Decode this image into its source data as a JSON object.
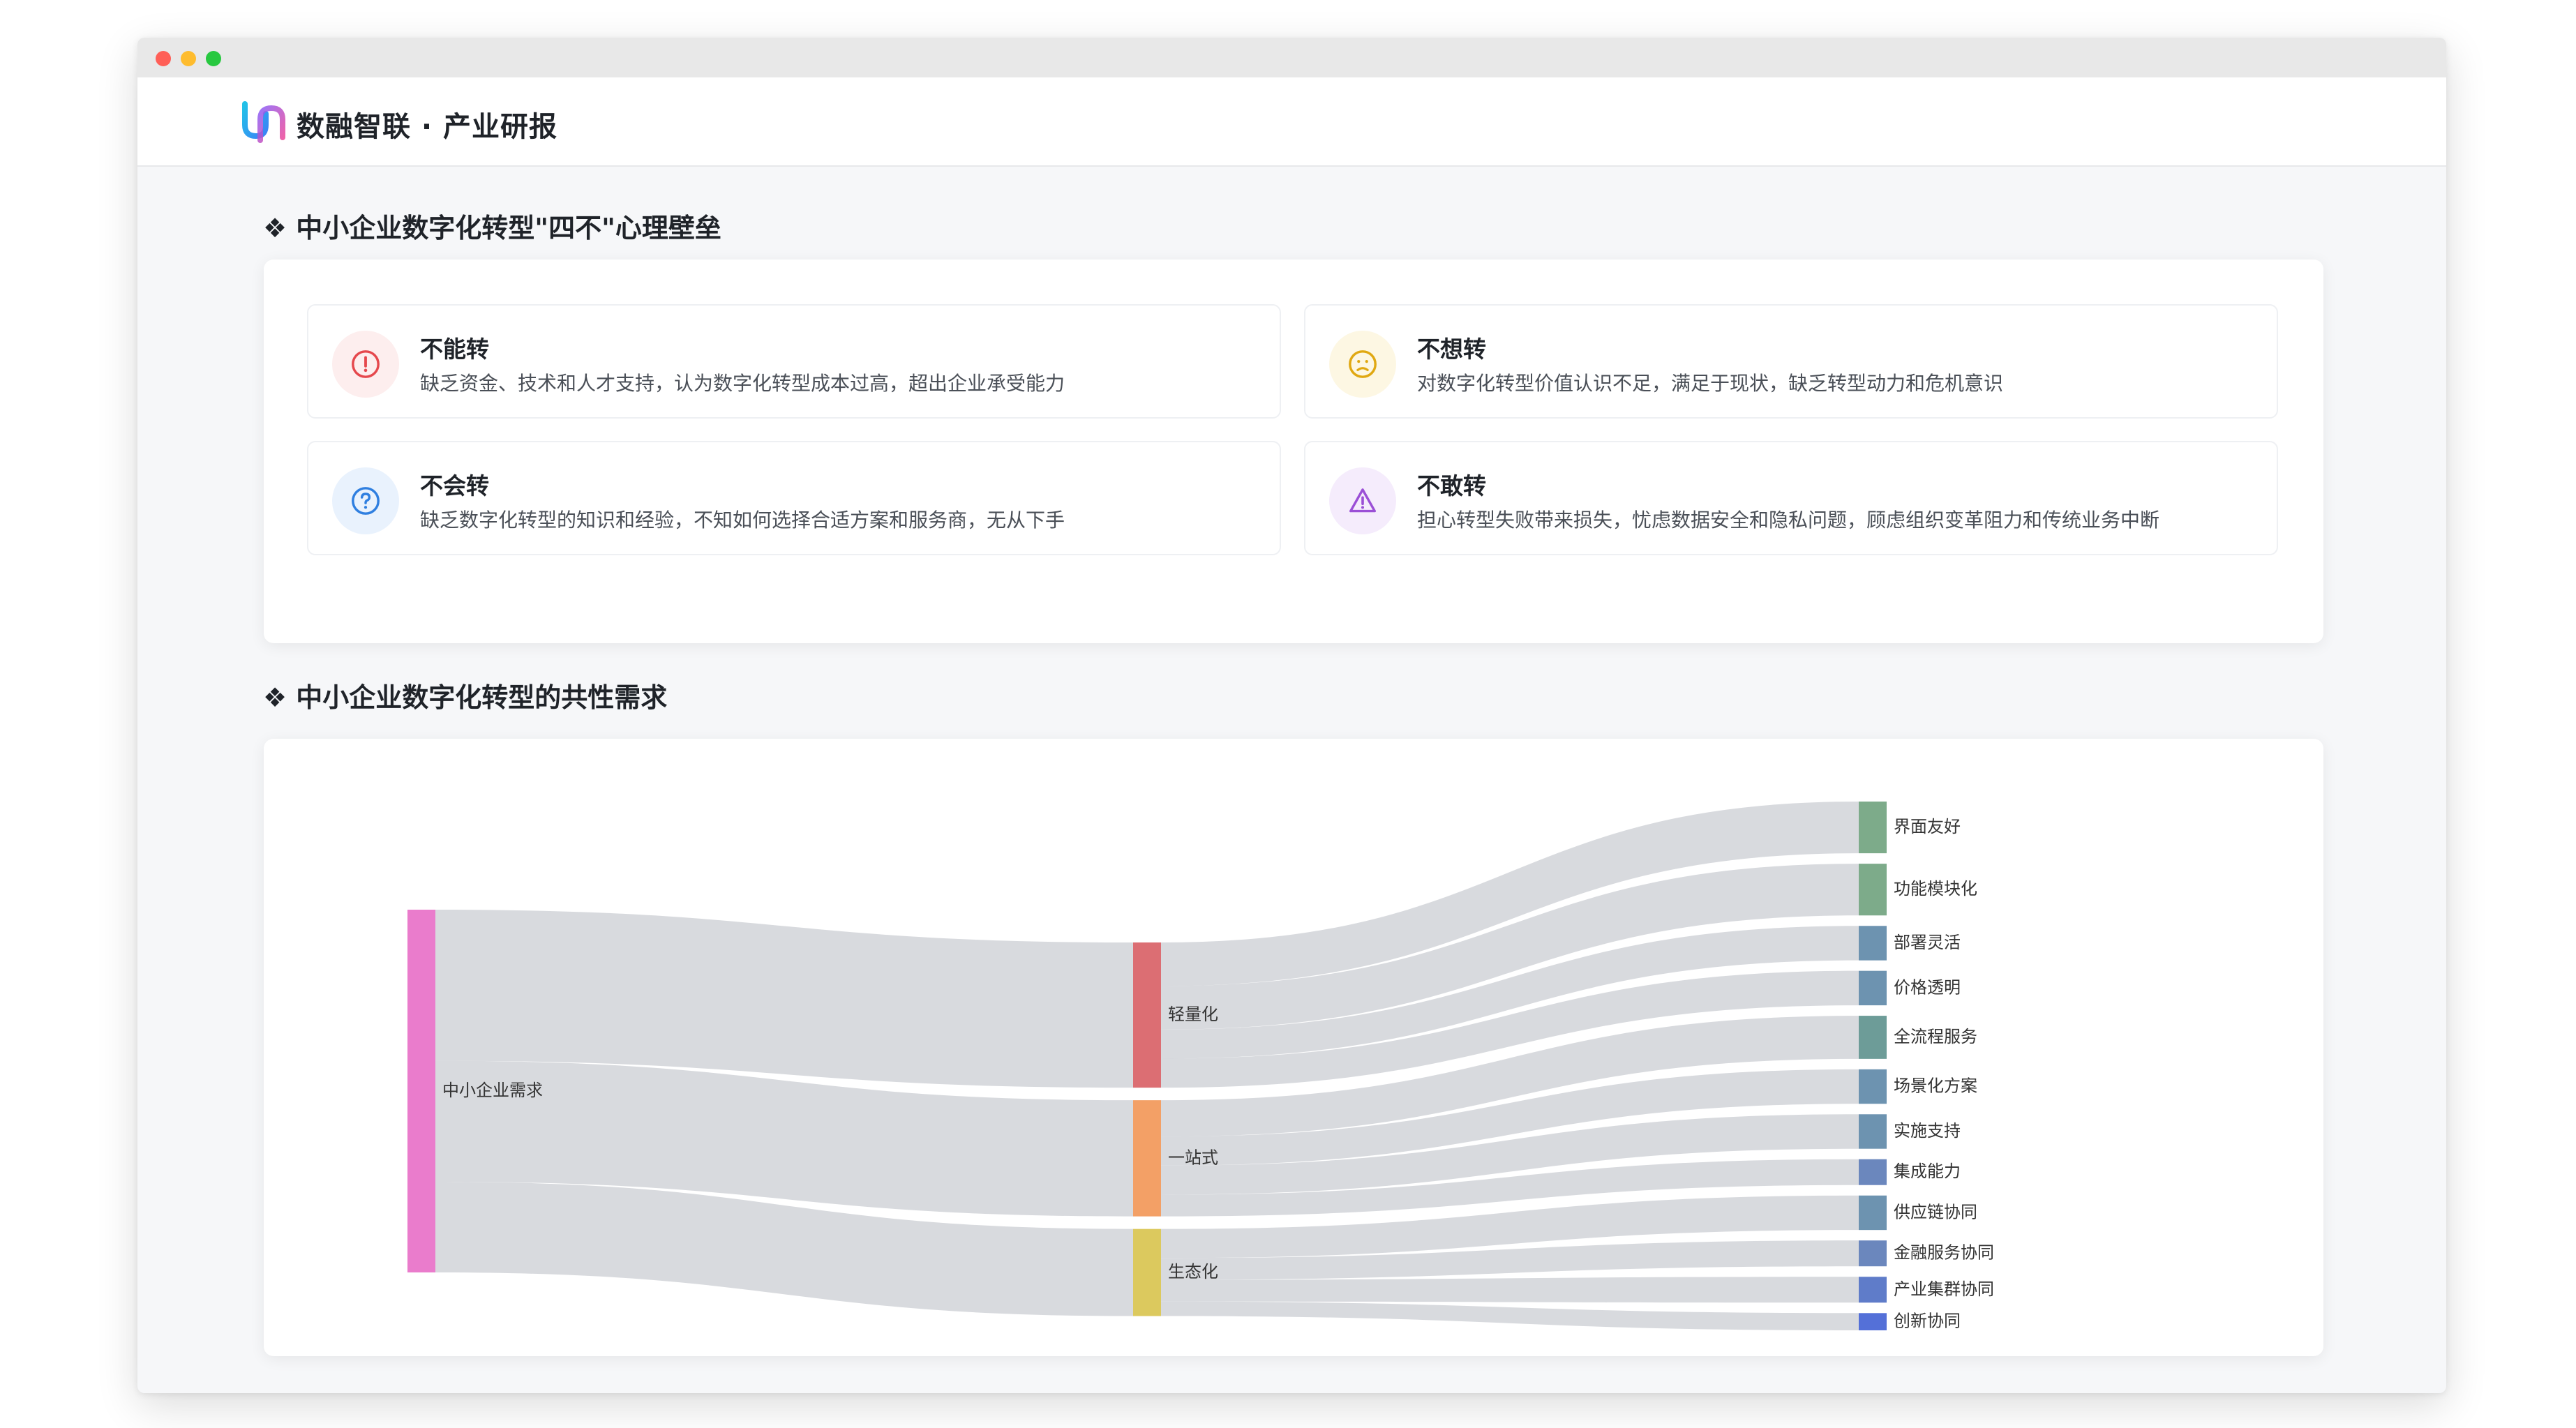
{
  "header": {
    "brand": "数融智联 · 产业研报"
  },
  "barriers": {
    "title": "❖ 中小企业数字化转型\"四不\"心理壁垒",
    "cards": [
      {
        "title": "不能转",
        "desc": "缺乏资金、技术和人才支持，认为数字化转型成本过高，超出企业承受能力",
        "icon": "alert-circle-icon",
        "color": "#e5484d",
        "bg": "#fdeeee"
      },
      {
        "title": "不想转",
        "desc": "对数字化转型价值认识不足，满足于现状，缺乏转型动力和危机意识",
        "icon": "frown-face-icon",
        "color": "#e0a812",
        "bg": "#fdf7e3"
      },
      {
        "title": "不会转",
        "desc": "缺乏数字化转型的知识和经验，不知如何选择合适方案和服务商，无从下手",
        "icon": "question-circle-icon",
        "color": "#2f7fe0",
        "bg": "#e9f2fd"
      },
      {
        "title": "不敢转",
        "desc": "担心转型失败带来损失，忧虑数据安全和隐私问题，顾虑组织变革阻力和传统业务中断",
        "icon": "warning-triangle-icon",
        "color": "#9b4fd6",
        "bg": "#f5ecfc"
      }
    ]
  },
  "needs": {
    "title": "❖ 中小企业数字化转型的共性需求",
    "chart_data": {
      "type": "sankey",
      "nodes": [
        {
          "name": "中小企业需求",
          "color": "#ea7ccc"
        },
        {
          "name": "轻量化",
          "color": "#dc6e73"
        },
        {
          "name": "一站式",
          "color": "#f3a066"
        },
        {
          "name": "生态化",
          "color": "#dcc95e"
        },
        {
          "name": "界面友好",
          "color": "#7dab8a"
        },
        {
          "name": "功能模块化",
          "color": "#7dab8a"
        },
        {
          "name": "部署灵活",
          "color": "#6d93b0"
        },
        {
          "name": "价格透明",
          "color": "#6d93b0"
        },
        {
          "name": "全流程服务",
          "color": "#6d9c98"
        },
        {
          "name": "场景化方案",
          "color": "#6d93b0"
        },
        {
          "name": "实施支持",
          "color": "#6d93b0"
        },
        {
          "name": "集成能力",
          "color": "#6b87bd"
        },
        {
          "name": "供应链协同",
          "color": "#6d93b0"
        },
        {
          "name": "金融服务协同",
          "color": "#6b87bd"
        },
        {
          "name": "产业集群协同",
          "color": "#5f7cc9"
        },
        {
          "name": "创新协同",
          "color": "#5470d8"
        }
      ],
      "links": [
        {
          "source": "中小企业需求",
          "target": "轻量化",
          "value": 40
        },
        {
          "source": "中小企业需求",
          "target": "一站式",
          "value": 32
        },
        {
          "source": "中小企业需求",
          "target": "生态化",
          "value": 24
        },
        {
          "source": "轻量化",
          "target": "界面友好",
          "value": 12
        },
        {
          "source": "轻量化",
          "target": "功能模块化",
          "value": 12
        },
        {
          "source": "轻量化",
          "target": "部署灵活",
          "value": 8
        },
        {
          "source": "轻量化",
          "target": "价格透明",
          "value": 8
        },
        {
          "source": "一站式",
          "target": "全流程服务",
          "value": 10
        },
        {
          "source": "一站式",
          "target": "场景化方案",
          "value": 8
        },
        {
          "source": "一站式",
          "target": "实施支持",
          "value": 8
        },
        {
          "source": "一站式",
          "target": "集成能力",
          "value": 6
        },
        {
          "source": "生态化",
          "target": "供应链协同",
          "value": 8
        },
        {
          "source": "生态化",
          "target": "金融服务协同",
          "value": 6
        },
        {
          "source": "生态化",
          "target": "产业集群协同",
          "value": 6
        },
        {
          "source": "生态化",
          "target": "创新协同",
          "value": 4
        }
      ]
    }
  }
}
